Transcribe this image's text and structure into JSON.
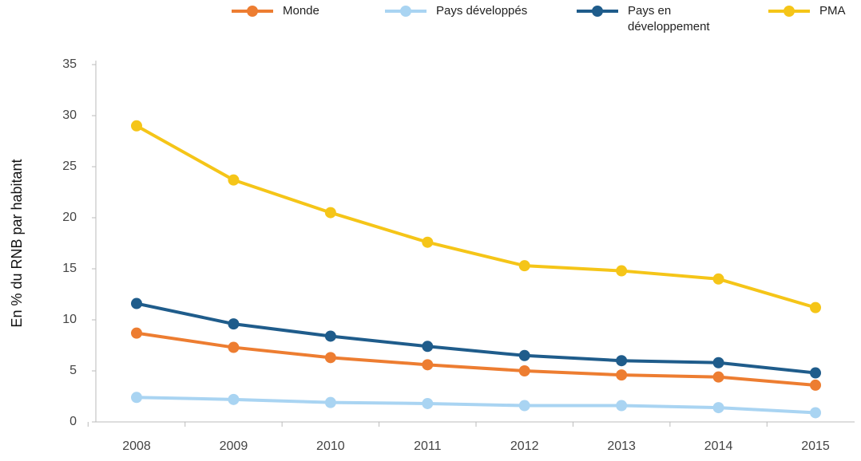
{
  "chart_data": {
    "type": "line",
    "y_label": "En % du RNB par habitant",
    "categories": [
      "2008",
      "2009",
      "2010",
      "2011",
      "2012",
      "2013",
      "2014",
      "2015"
    ],
    "series": [
      {
        "name": "Monde",
        "color": "#ed7d31",
        "values": [
          8.7,
          7.3,
          6.3,
          5.6,
          5.0,
          4.6,
          4.4,
          3.6
        ]
      },
      {
        "name": "Pays développés",
        "color": "#a9d4f2",
        "values": [
          2.4,
          2.2,
          1.9,
          1.8,
          1.6,
          1.6,
          1.4,
          0.9
        ]
      },
      {
        "name": "Pays en développement",
        "color": "#1f5c8b",
        "values": [
          11.6,
          9.6,
          8.4,
          7.4,
          6.5,
          6.0,
          5.8,
          4.8
        ]
      },
      {
        "name": "PMA",
        "color": "#f5c518",
        "values": [
          29.0,
          23.7,
          20.5,
          17.6,
          15.3,
          14.8,
          14.0,
          11.2
        ]
      }
    ],
    "ylim": [
      0,
      35
    ],
    "yticks": [
      0,
      5,
      10,
      15,
      20,
      25,
      30,
      35
    ],
    "legend": "top"
  }
}
